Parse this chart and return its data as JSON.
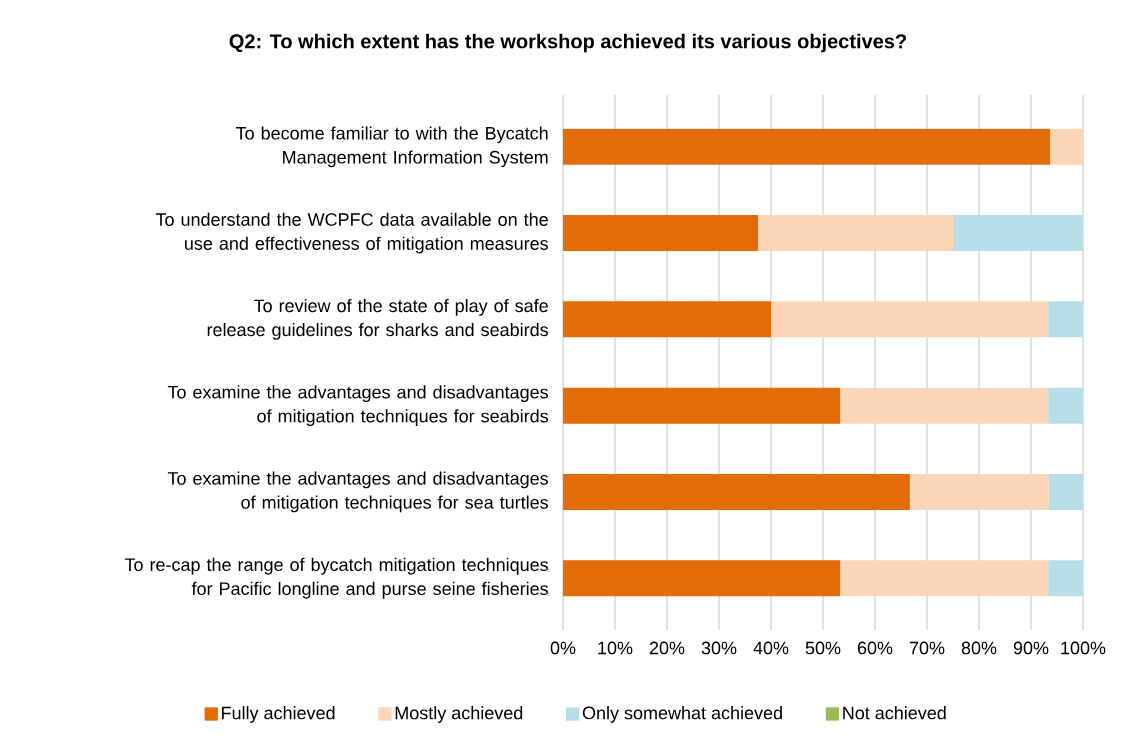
{
  "chart_data": {
    "type": "bar",
    "orientation": "horizontal",
    "stacked": true,
    "title": "Q2: To which extent has the workshop achieved its various objectives?",
    "categories": [
      "To become familiar to with the Bycatch Management Information System",
      "To understand the WCPFC data available on the use and effectiveness of mitigation measures",
      "To review of the state of play of safe release guidelines for sharks and seabirds",
      "To examine the advantages and disadvantages of mitigation techniques for seabirds",
      "To examine the advantages and disadvantages of mitigation techniques for sea turtles",
      "To re-cap the range of bycatch mitigation techniques for Pacific longline and purse seine fisheries"
    ],
    "series": [
      {
        "name": "Fully achieved",
        "color": "#e36c09",
        "values": [
          93.7,
          37.5,
          40.0,
          53.3,
          66.7,
          53.3
        ]
      },
      {
        "name": "Mostly achieved",
        "color": "#fbd5b5",
        "values": [
          6.3,
          37.5,
          53.3,
          40.0,
          26.7,
          40.0
        ]
      },
      {
        "name": "Only somewhat achieved",
        "color": "#b7dee8",
        "values": [
          0,
          25.0,
          6.7,
          6.7,
          6.6,
          6.7
        ]
      },
      {
        "name": "Not achieved",
        "color": "#9bbb59",
        "values": [
          0,
          0,
          0,
          0,
          0,
          0
        ]
      }
    ],
    "xlim": [
      0,
      100
    ],
    "xticks": [
      {
        "value": 0,
        "label": "0%"
      },
      {
        "value": 10,
        "label": "10%"
      },
      {
        "value": 20,
        "label": "20%"
      },
      {
        "value": 30,
        "label": "30%"
      },
      {
        "value": 40,
        "label": "40%"
      },
      {
        "value": 50,
        "label": "50%"
      },
      {
        "value": 60,
        "label": "60%"
      },
      {
        "value": 70,
        "label": "70%"
      },
      {
        "value": 80,
        "label": "80%"
      },
      {
        "value": 90,
        "label": "90%"
      },
      {
        "value": 100,
        "label": "100%"
      }
    ],
    "grid": "x",
    "legend": "bottom"
  }
}
